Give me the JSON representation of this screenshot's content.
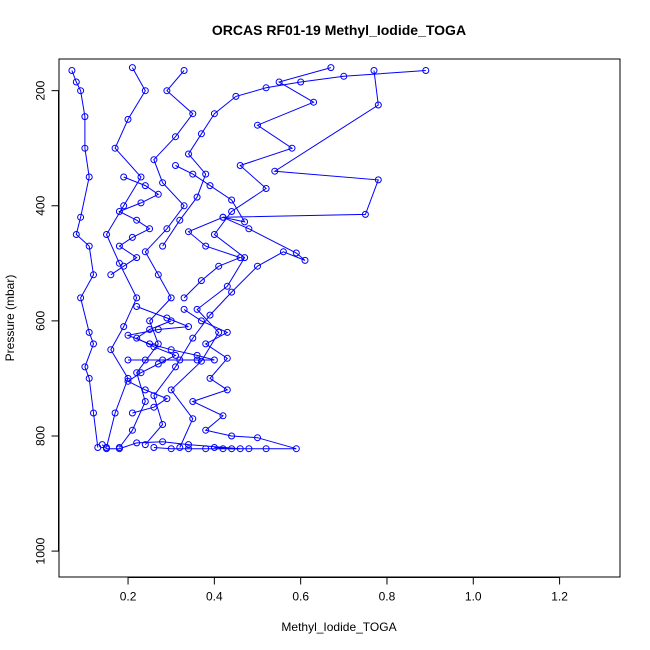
{
  "chart_data": {
    "type": "scatter",
    "title": "ORCAS RF01-19 Methyl_Iodide_TOGA",
    "xlabel": "Methyl_Iodide_TOGA",
    "ylabel": "Pressure (mbar)",
    "xlim": [
      0.04,
      1.34
    ],
    "ylim": [
      1045,
      145
    ],
    "y_reversed": true,
    "x_ticks": [
      0.2,
      0.4,
      0.6,
      0.8,
      1.0,
      1.2
    ],
    "x_tick_labels": [
      "0.2",
      "0.4",
      "0.6",
      "0.8",
      "1.0",
      "1.2"
    ],
    "y_ticks": [
      200,
      400,
      600,
      800,
      1000
    ],
    "y_tick_labels": [
      "200",
      "400",
      "600",
      "800",
      "1000"
    ],
    "grid": false,
    "legend": "none",
    "color": "#0000ff",
    "marker": "open-circle",
    "series": [
      {
        "values": [
          [
            0.18,
            820
          ],
          [
            0.21,
            790
          ],
          [
            0.24,
            740
          ],
          [
            0.22,
            690
          ],
          [
            0.27,
            640
          ],
          [
            0.25,
            600
          ],
          [
            0.3,
            560
          ],
          [
            0.27,
            520
          ],
          [
            0.24,
            480
          ],
          [
            0.29,
            440
          ],
          [
            0.33,
            400
          ],
          [
            0.28,
            360
          ],
          [
            0.26,
            320
          ],
          [
            0.31,
            280
          ],
          [
            0.35,
            240
          ],
          [
            0.29,
            200
          ],
          [
            0.33,
            165
          ]
        ]
      },
      {
        "values": [
          [
            0.15,
            820
          ],
          [
            0.17,
            760
          ],
          [
            0.2,
            700
          ],
          [
            0.16,
            650
          ],
          [
            0.19,
            610
          ],
          [
            0.22,
            560
          ],
          [
            0.18,
            500
          ],
          [
            0.15,
            450
          ],
          [
            0.19,
            400
          ],
          [
            0.23,
            350
          ],
          [
            0.17,
            300
          ],
          [
            0.2,
            250
          ],
          [
            0.24,
            200
          ],
          [
            0.21,
            160
          ]
        ]
      },
      {
        "values": [
          [
            0.32,
            820
          ],
          [
            0.35,
            770
          ],
          [
            0.3,
            720
          ],
          [
            0.37,
            670
          ],
          [
            0.41,
            620
          ],
          [
            0.36,
            580
          ],
          [
            0.43,
            540
          ],
          [
            0.47,
            490
          ],
          [
            0.4,
            450
          ],
          [
            0.44,
            410
          ],
          [
            0.52,
            370
          ],
          [
            0.46,
            330
          ],
          [
            0.58,
            300
          ],
          [
            0.5,
            260
          ],
          [
            0.63,
            220
          ],
          [
            0.55,
            185
          ],
          [
            0.67,
            160
          ]
        ]
      },
      {
        "values": [
          [
            0.24,
            815
          ],
          [
            0.28,
            780
          ],
          [
            0.26,
            730
          ],
          [
            0.31,
            680
          ],
          [
            0.35,
            630
          ],
          [
            0.39,
            590
          ],
          [
            0.44,
            550
          ],
          [
            0.5,
            505
          ],
          [
            0.56,
            480
          ],
          [
            0.61,
            495
          ],
          [
            0.59,
            482
          ],
          [
            0.48,
            440
          ],
          [
            0.42,
            420
          ],
          [
            0.75,
            415
          ],
          [
            0.78,
            355
          ],
          [
            0.54,
            340
          ],
          [
            0.78,
            225
          ],
          [
            0.77,
            165
          ]
        ]
      },
      {
        "values": [
          [
            0.13,
            820
          ],
          [
            0.12,
            760
          ],
          [
            0.11,
            700
          ],
          [
            0.1,
            680
          ],
          [
            0.12,
            640
          ],
          [
            0.11,
            620
          ],
          [
            0.09,
            560
          ],
          [
            0.12,
            520
          ],
          [
            0.11,
            470
          ],
          [
            0.08,
            450
          ],
          [
            0.09,
            420
          ],
          [
            0.11,
            350
          ],
          [
            0.1,
            300
          ],
          [
            0.1,
            245
          ],
          [
            0.09,
            200
          ],
          [
            0.08,
            185
          ],
          [
            0.07,
            165
          ]
        ]
      },
      {
        "values": [
          [
            0.4,
            820
          ],
          [
            0.44,
            822
          ],
          [
            0.48,
            822
          ],
          [
            0.52,
            822
          ],
          [
            0.59,
            822
          ],
          [
            0.5,
            803
          ],
          [
            0.44,
            800
          ],
          [
            0.38,
            790
          ],
          [
            0.42,
            765
          ],
          [
            0.35,
            740
          ],
          [
            0.43,
            720
          ],
          [
            0.39,
            700
          ],
          [
            0.43,
            665
          ],
          [
            0.38,
            640
          ],
          [
            0.43,
            620
          ],
          [
            0.37,
            600
          ],
          [
            0.33,
            580
          ]
        ]
      },
      {
        "values": [
          [
            0.2,
            668
          ],
          [
            0.24,
            668
          ],
          [
            0.28,
            668
          ],
          [
            0.32,
            668
          ],
          [
            0.36,
            668
          ],
          [
            0.4,
            668
          ],
          [
            0.36,
            660
          ],
          [
            0.3,
            650
          ],
          [
            0.25,
            640
          ],
          [
            0.2,
            625
          ],
          [
            0.27,
            615
          ],
          [
            0.34,
            610
          ],
          [
            0.29,
            595
          ],
          [
            0.22,
            575
          ]
        ]
      },
      {
        "values": [
          [
            0.89,
            165
          ],
          [
            0.7,
            175
          ],
          [
            0.6,
            185
          ],
          [
            0.52,
            195
          ],
          [
            0.45,
            210
          ],
          [
            0.4,
            240
          ],
          [
            0.37,
            275
          ],
          [
            0.34,
            310
          ],
          [
            0.38,
            345
          ],
          [
            0.36,
            385
          ],
          [
            0.32,
            425
          ],
          [
            0.28,
            470
          ]
        ]
      },
      {
        "values": [
          [
            0.16,
            520
          ],
          [
            0.19,
            505
          ],
          [
            0.22,
            490
          ],
          [
            0.18,
            470
          ],
          [
            0.21,
            455
          ],
          [
            0.25,
            440
          ],
          [
            0.22,
            425
          ],
          [
            0.18,
            410
          ],
          [
            0.23,
            395
          ],
          [
            0.27,
            380
          ],
          [
            0.24,
            365
          ],
          [
            0.19,
            350
          ]
        ]
      },
      {
        "values": [
          [
            0.26,
            820
          ],
          [
            0.3,
            822
          ],
          [
            0.34,
            822
          ],
          [
            0.38,
            822
          ],
          [
            0.42,
            822
          ],
          [
            0.46,
            822
          ],
          [
            0.34,
            815
          ],
          [
            0.28,
            810
          ],
          [
            0.22,
            812
          ],
          [
            0.18,
            822
          ],
          [
            0.15,
            822
          ],
          [
            0.14,
            815
          ]
        ]
      },
      {
        "values": [
          [
            0.33,
            560
          ],
          [
            0.37,
            530
          ],
          [
            0.41,
            505
          ],
          [
            0.46,
            490
          ],
          [
            0.38,
            470
          ],
          [
            0.34,
            445
          ],
          [
            0.42,
            420
          ],
          [
            0.47,
            428
          ],
          [
            0.44,
            390
          ],
          [
            0.39,
            365
          ],
          [
            0.35,
            345
          ],
          [
            0.31,
            330
          ]
        ]
      },
      {
        "values": [
          [
            0.21,
            760
          ],
          [
            0.26,
            750
          ],
          [
            0.29,
            735
          ],
          [
            0.24,
            720
          ],
          [
            0.2,
            705
          ],
          [
            0.23,
            690
          ],
          [
            0.27,
            675
          ],
          [
            0.31,
            660
          ],
          [
            0.26,
            645
          ],
          [
            0.22,
            630
          ],
          [
            0.25,
            615
          ],
          [
            0.3,
            600
          ]
        ]
      }
    ]
  }
}
